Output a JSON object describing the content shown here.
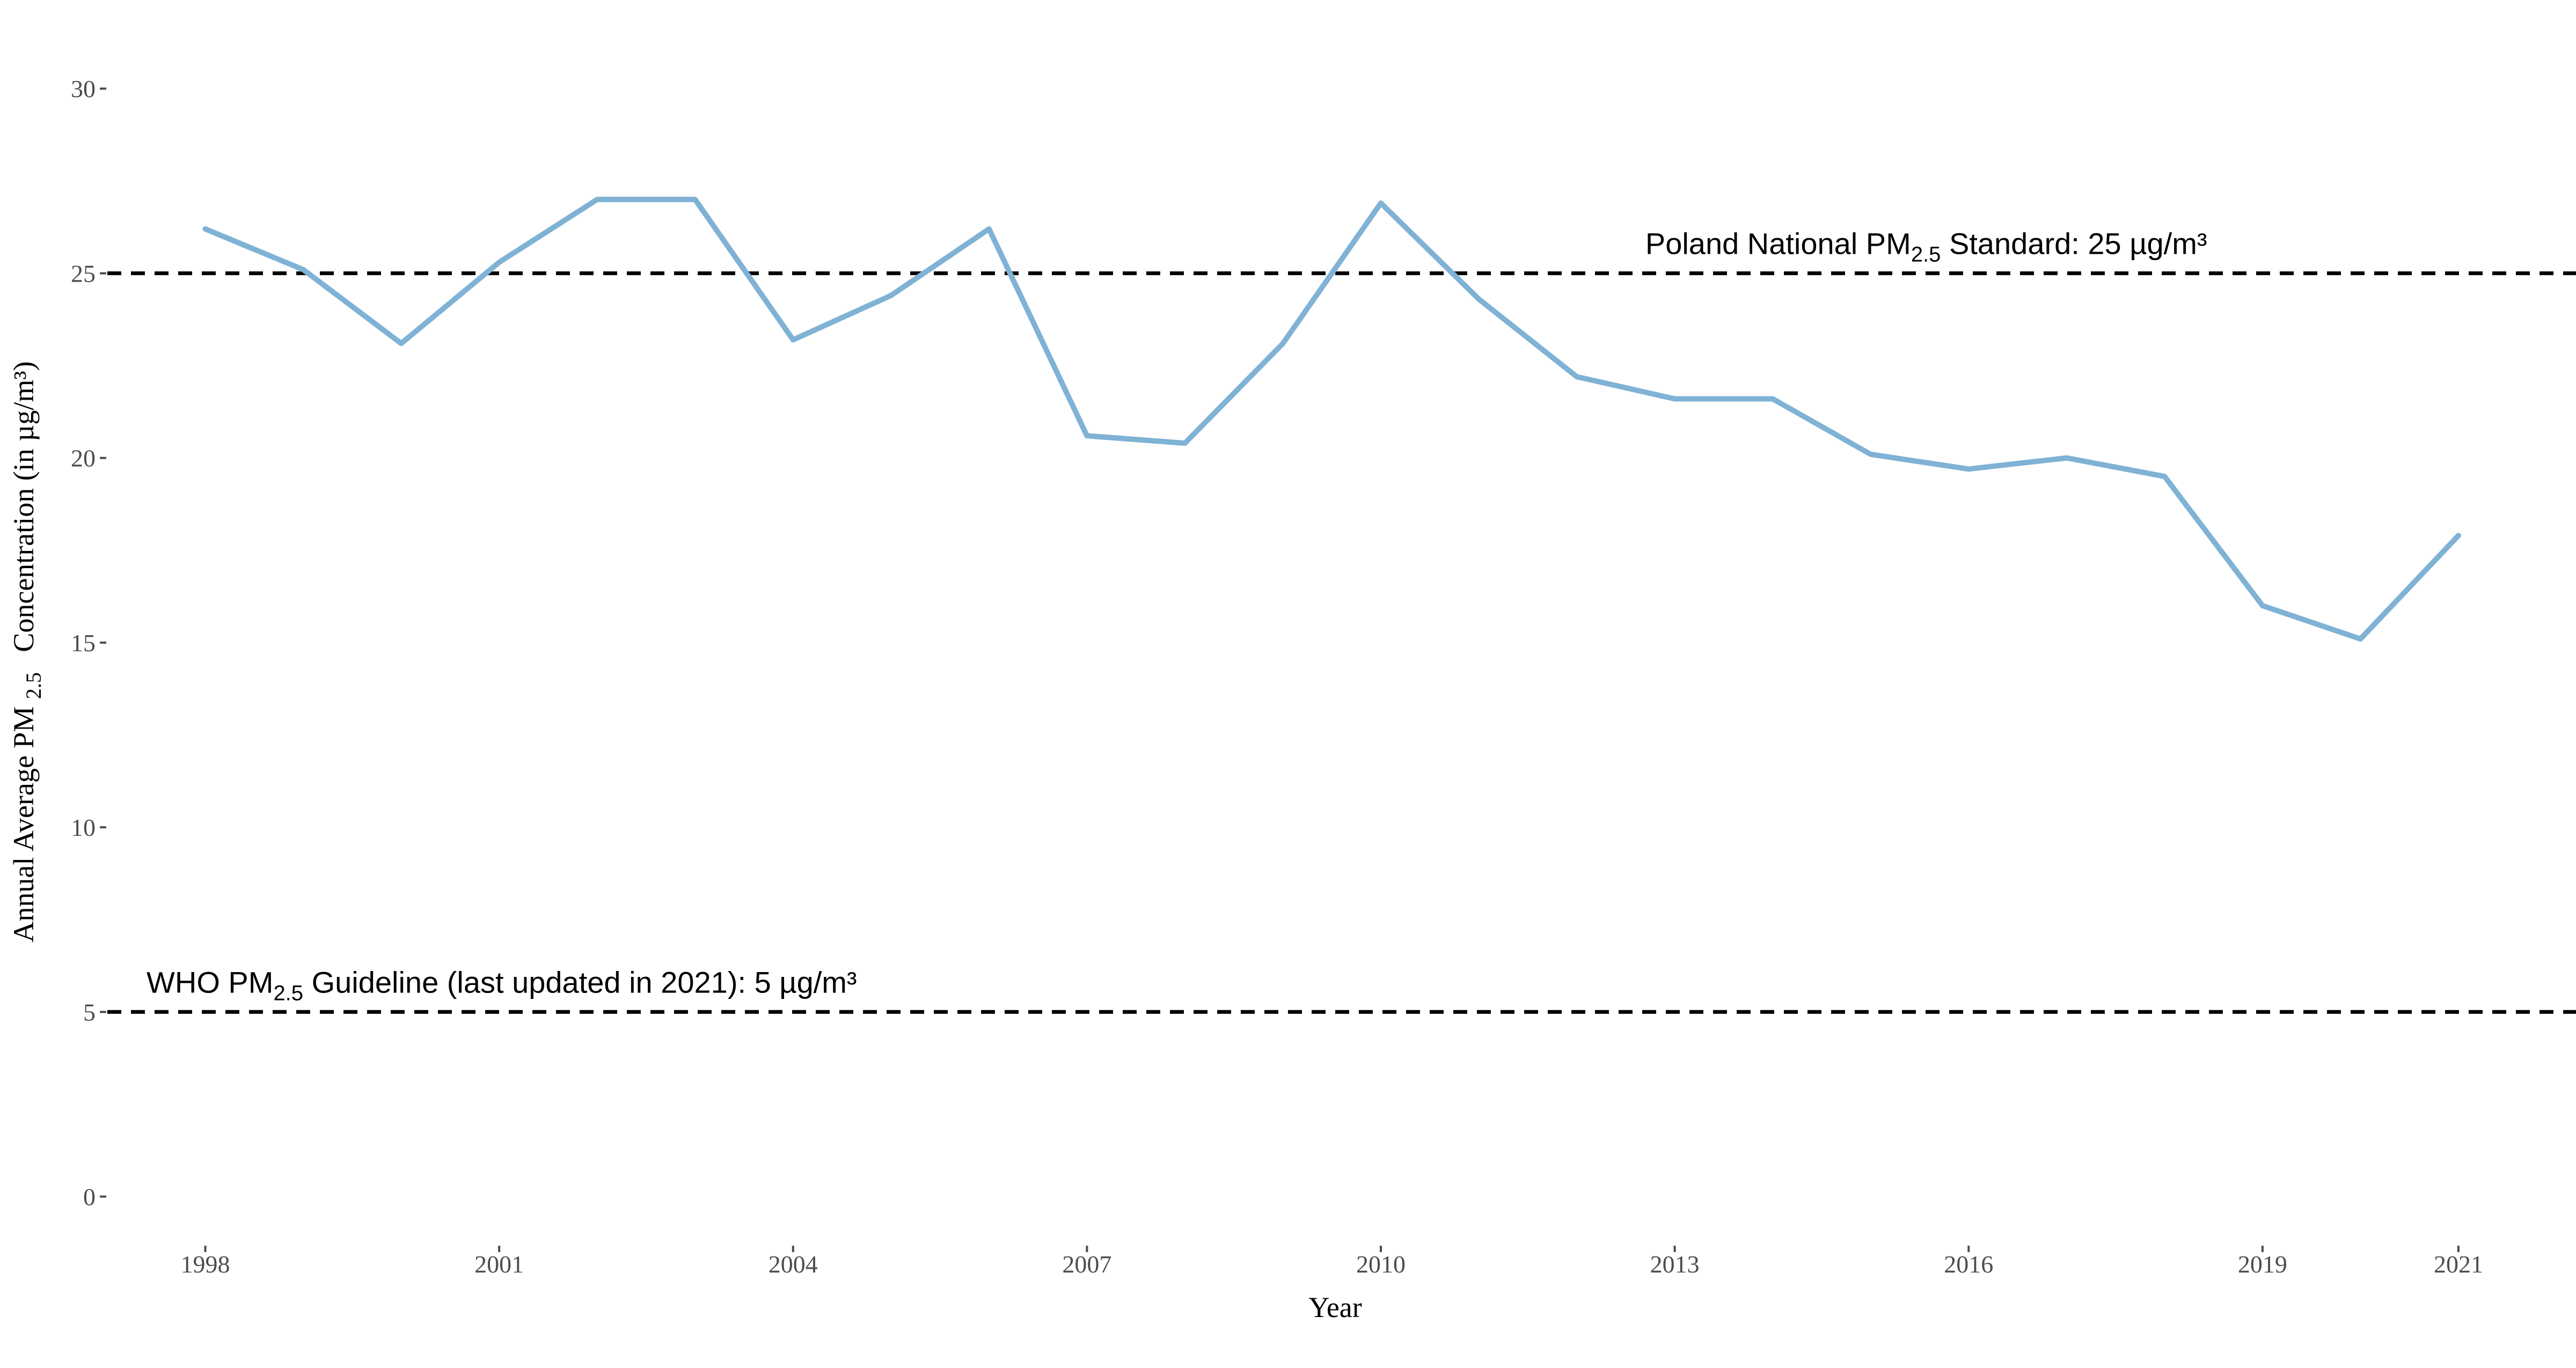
{
  "chart_data": {
    "type": "line",
    "xlabel": "Year",
    "ylabel": {
      "prefix": "Annual Average",
      "pm": "PM",
      "sub": "2.5",
      "suffix": "Concentration (in µg/m³)"
    },
    "xlim": [
      1997,
      2022.2
    ],
    "ylim": [
      -1.3,
      32.4
    ],
    "x_ticks": [
      1998,
      2001,
      2004,
      2007,
      2010,
      2013,
      2016,
      2019,
      2021
    ],
    "y_ticks": [
      0,
      5,
      10,
      15,
      20,
      25,
      30
    ],
    "grid": false,
    "series": [
      {
        "color": "#7fb2d5",
        "x": [
          1998,
          1999,
          2000,
          2001,
          2002,
          2003,
          2004,
          2005,
          2006,
          2007,
          2008,
          2009,
          2010,
          2011,
          2012,
          2013,
          2014,
          2015,
          2016,
          2017,
          2018,
          2019,
          2020,
          2021
        ],
        "y": [
          26.2,
          25.1,
          23.1,
          25.3,
          27.0,
          27.0,
          23.2,
          24.4,
          26.2,
          20.6,
          20.4,
          23.1,
          26.9,
          24.3,
          22.2,
          21.6,
          21.6,
          20.1,
          19.7,
          20.0,
          19.5,
          16.0,
          15.1,
          17.9
        ]
      }
    ],
    "reference_lines": [
      {
        "value": 25,
        "color": "#000000",
        "label_x": 2012.7,
        "label": {
          "before": "Poland National PM",
          "sub": "2.5",
          "after": " Standard: 25 µg/m³"
        }
      },
      {
        "value": 5,
        "color": "#000000",
        "label_x": 1997.4,
        "label": {
          "before": "WHO  PM",
          "sub": "2.5",
          "after": "  Guideline (last updated in 2021): 5 µg/m³"
        }
      }
    ]
  }
}
